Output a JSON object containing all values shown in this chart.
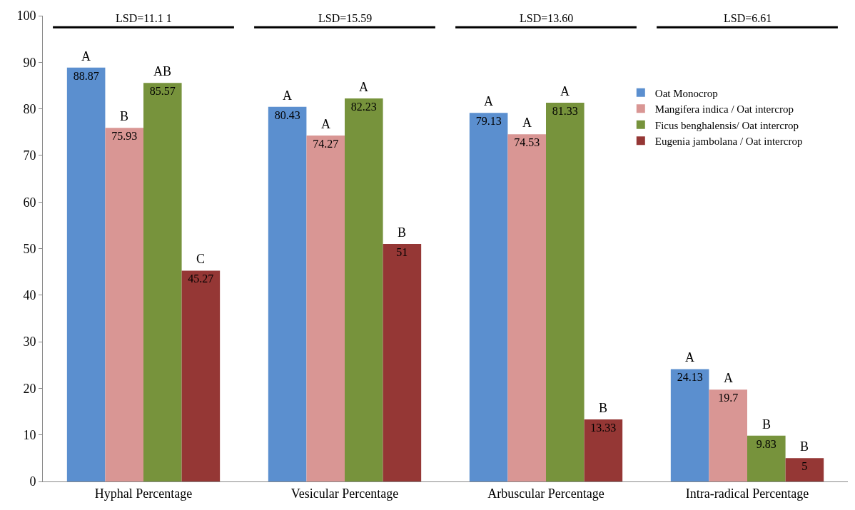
{
  "chart_data": {
    "type": "bar",
    "categories": [
      "Hyphal Percentage",
      "Vesicular Percentage",
      "Arbuscular Percentage",
      "Intra-radical Percentage"
    ],
    "series": [
      {
        "name": "Oat Monocrop",
        "color": "#5b8fcf",
        "values": [
          88.87,
          80.43,
          79.13,
          24.13
        ]
      },
      {
        "name": "Mangifera indica / Oat intercrop",
        "color": "#d99694",
        "values": [
          75.93,
          74.27,
          74.53,
          19.7
        ]
      },
      {
        "name": "Ficus benghalensis/ Oat intercrop",
        "color": "#77933c",
        "values": [
          85.57,
          82.23,
          81.33,
          9.83
        ]
      },
      {
        "name": "Eugenia jambolana / Oat intercrop",
        "color": "#953735",
        "values": [
          45.27,
          51,
          13.33,
          5
        ]
      }
    ],
    "ylim": [
      0,
      100
    ],
    "yticks": [
      0,
      10,
      20,
      30,
      40,
      50,
      60,
      70,
      80,
      90,
      100
    ],
    "grid": false,
    "legend": "right",
    "data_labels": true,
    "annotations": [
      "LSD=11.1 1",
      "LSD=15.59",
      "LSD=13.60",
      "LSD=6.61",
      "A",
      "B",
      "AB",
      "C",
      "A",
      "A",
      "A",
      "B",
      "A",
      "A",
      "A",
      "B",
      "A",
      "A",
      "B",
      "B"
    ]
  }
}
